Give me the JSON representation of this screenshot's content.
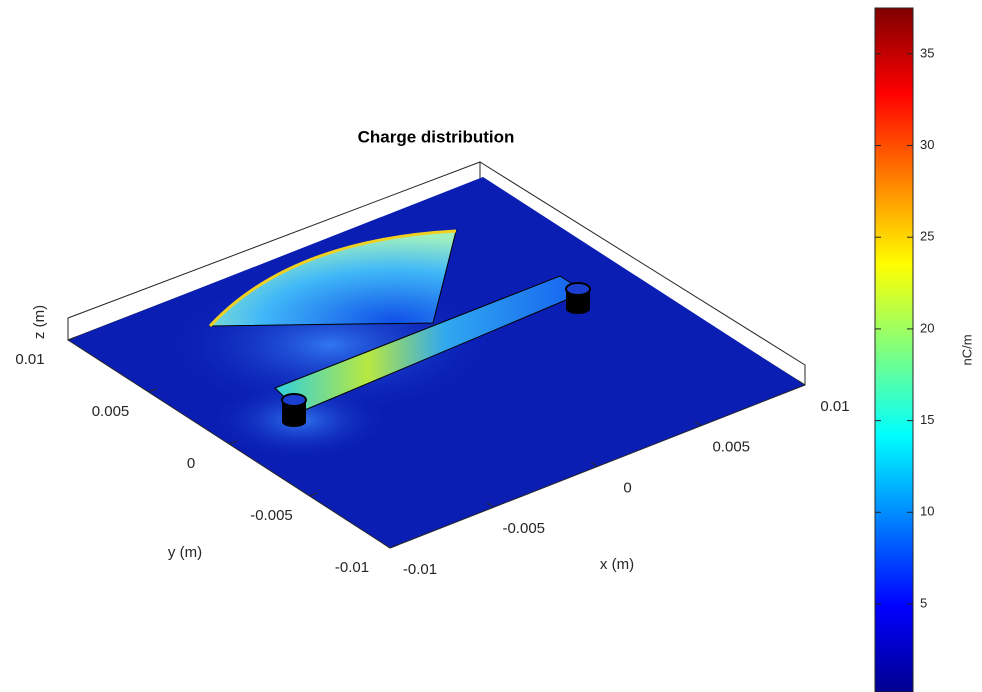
{
  "chart_data": {
    "type": "surface",
    "title": "Charge distribution",
    "xlabel": "x (m)",
    "ylabel": "y (m)",
    "zlabel": "z (m)",
    "xlim": [
      -0.01,
      0.01
    ],
    "xticks": [
      -0.01,
      -0.005,
      0,
      0.005,
      0.01
    ],
    "ylim": [
      -0.01,
      0.01
    ],
    "yticks": [
      -0.01,
      -0.005,
      0,
      0.005,
      0.01
    ],
    "colorbar": {
      "label": "nC/m",
      "clim": [
        0.2,
        37.5
      ],
      "ticks": [
        5,
        10,
        15,
        20,
        25,
        30,
        35
      ],
      "colormap": "jet"
    }
  }
}
